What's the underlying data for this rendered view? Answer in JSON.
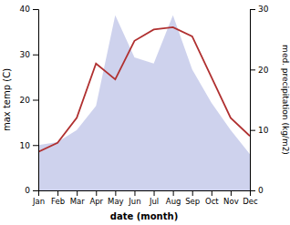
{
  "chart_data": {
    "type": "line",
    "categories": [
      "Jan",
      "Feb",
      "Mar",
      "Apr",
      "May",
      "Jun",
      "Jul",
      "Aug",
      "Sep",
      "Oct",
      "Nov",
      "Dec"
    ],
    "xlabel": "date (month)",
    "ylabel": "max temp (C)",
    "y2label": "med. precipitation (kg/m2)",
    "series": [
      {
        "type": "area",
        "axis": "y2",
        "color": "#c5caea",
        "values": [
          7.5,
          8.0,
          10.0,
          14.0,
          29.0,
          22.0,
          21.0,
          29.0,
          20.0,
          14.5,
          10.0,
          6.0
        ]
      },
      {
        "type": "line",
        "color": "#b03030",
        "values": [
          8.5,
          10.5,
          16.0,
          28.0,
          24.5,
          33.0,
          35.5,
          36.0,
          34.0,
          25.0,
          16.0,
          12.0
        ]
      }
    ],
    "ylim": [
      0,
      40
    ],
    "yticks": [
      0,
      10,
      20,
      30,
      40
    ],
    "y2lim": [
      0,
      30
    ],
    "y2ticks": [
      0,
      10,
      20,
      30
    ],
    "grid": false
  }
}
